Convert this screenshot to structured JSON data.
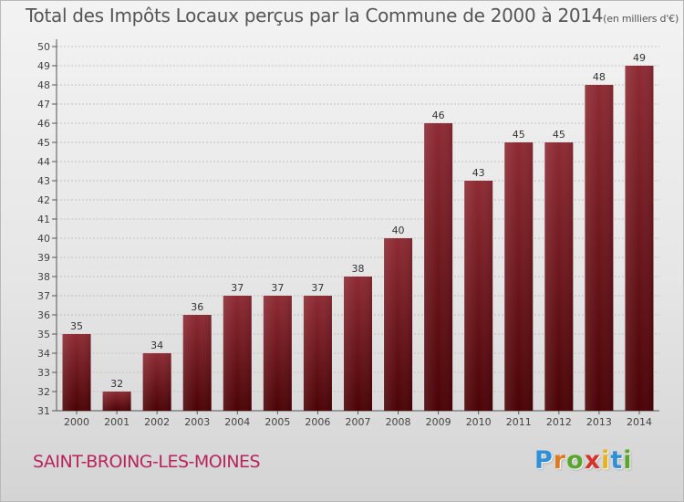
{
  "chart_data": {
    "type": "bar",
    "title": "Total des Impôts Locaux perçus par la Commune de 2000 à 2014",
    "unit_note": "(en milliers d'€)",
    "categories": [
      "2000",
      "2001",
      "2002",
      "2003",
      "2004",
      "2005",
      "2006",
      "2007",
      "2008",
      "2009",
      "2010",
      "2011",
      "2012",
      "2013",
      "2014"
    ],
    "values": [
      35,
      32,
      34,
      36,
      37,
      37,
      37,
      38,
      40,
      46,
      43,
      45,
      45,
      48,
      49
    ],
    "ylim": [
      31,
      50
    ],
    "yticks": [
      31,
      32,
      33,
      34,
      35,
      36,
      37,
      38,
      39,
      40,
      41,
      42,
      43,
      44,
      45,
      46,
      47,
      48,
      49,
      50
    ],
    "xlabel": "",
    "ylabel": "",
    "grid": true,
    "data_labels": true,
    "bar_color": "#7a1a22"
  },
  "commune": "SAINT-BROING-LES-MOINES",
  "logo": {
    "letters": [
      "P",
      "r",
      "o",
      "x",
      "i",
      "t",
      "i"
    ],
    "colors": [
      "#2f8fd8",
      "#e07a1f",
      "#5aa62c",
      "#d6322b",
      "#e8b21c",
      "#2f8fd8",
      "#5aa62c"
    ]
  }
}
